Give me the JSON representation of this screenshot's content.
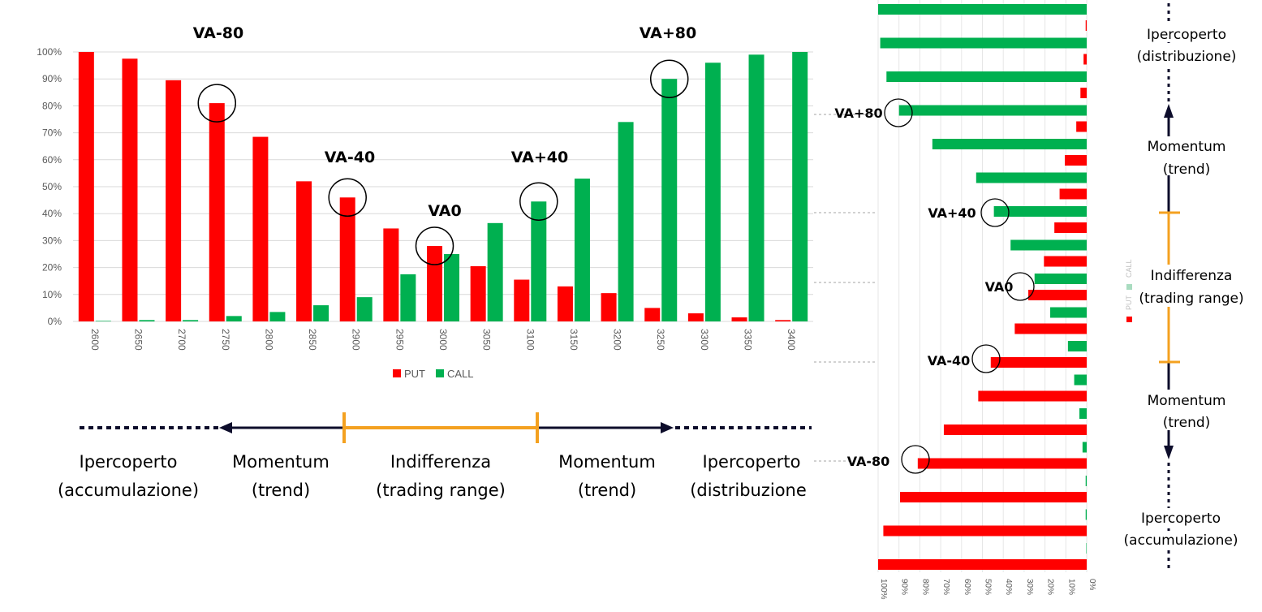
{
  "chart_data": [
    {
      "type": "bar",
      "categories": [
        "2600",
        "2650",
        "2700",
        "2750",
        "2800",
        "2850",
        "2900",
        "2950",
        "3000",
        "3050",
        "3100",
        "3150",
        "3200",
        "3250",
        "3300",
        "3350",
        "3400"
      ],
      "series": [
        {
          "name": "PUT",
          "color": "#ff0000",
          "values": [
            100,
            97.5,
            89.5,
            81,
            68.5,
            52,
            46,
            34.5,
            28,
            20.5,
            15.5,
            13,
            10.5,
            5,
            3,
            1.5,
            0.5
          ]
        },
        {
          "name": "CALL",
          "color": "#00b050",
          "values": [
            0.2,
            0.5,
            0.5,
            2,
            3.5,
            6,
            9,
            17.5,
            25,
            36.5,
            44.5,
            53,
            74,
            90,
            96,
            99,
            100
          ]
        }
      ],
      "ylim": [
        0,
        100
      ],
      "yticks": [
        "0%",
        "10%",
        "20%",
        "30%",
        "40%",
        "50%",
        "60%",
        "70%",
        "80%",
        "90%",
        "100%"
      ],
      "grid": true,
      "legend_position": "bottom",
      "annotations": [
        {
          "label": "VA-80",
          "category": "2750",
          "value": 81
        },
        {
          "label": "VA-40",
          "category": "2900",
          "value": 46
        },
        {
          "label": "VA0",
          "category": "3000",
          "value": 28
        },
        {
          "label": "VA+40",
          "category": "3100",
          "value": 44.5
        },
        {
          "label": "VA+80",
          "category": "3250",
          "value": 90
        }
      ]
    },
    {
      "type": "bar",
      "orientation": "horizontal",
      "series": [
        {
          "name": "PUT",
          "color": "#ff0000",
          "values": [
            0.5,
            1.5,
            3,
            5,
            10.5,
            13,
            15.5,
            20.5,
            28,
            34.5,
            46,
            52,
            68.5,
            81,
            89.5,
            97.5,
            100
          ]
        },
        {
          "name": "CALL",
          "color": "#00b050",
          "values": [
            100,
            99,
            96,
            90,
            74,
            53,
            44.5,
            36.5,
            25,
            17.5,
            9,
            6,
            3.5,
            2,
            0.5,
            0.5,
            0.2
          ]
        }
      ],
      "xlim": [
        0,
        100
      ],
      "xticks": [
        "100%",
        "90%",
        "80%",
        "70%",
        "60%",
        "50%",
        "40%",
        "30%",
        "20%",
        "10%",
        "0%"
      ],
      "legend_labels": [
        "PUT",
        "CALL"
      ],
      "legend_position": "right",
      "annotations": [
        {
          "label": "VA+80"
        },
        {
          "label": "VA+40"
        },
        {
          "label": "VA0"
        },
        {
          "label": "VA-40"
        },
        {
          "label": "VA-80"
        }
      ]
    }
  ],
  "horizontal_scale": {
    "zones": [
      {
        "line1": "Ipercoperto",
        "line2": "(accumulazione)"
      },
      {
        "line1": "Momentum",
        "line2": "(trend)"
      },
      {
        "line1": "Indifferenza",
        "line2": "(trading range)"
      },
      {
        "line1": "Momentum",
        "line2": "(trend)"
      },
      {
        "line1": "Ipercoperto",
        "line2": "(distribuzione"
      }
    ]
  },
  "vertical_scale": {
    "zones": [
      {
        "line1": "Ipercoperto",
        "line2": "(distribuzione)"
      },
      {
        "line1": "Momentum",
        "line2": "(trend)"
      },
      {
        "line1": "Indifferenza",
        "line2": "(trading range)"
      },
      {
        "line1": "Momentum",
        "line2": "(trend)"
      },
      {
        "line1": "Ipercoperto",
        "line2": "(accumulazione)"
      }
    ]
  },
  "colors": {
    "put": "#ff0000",
    "call": "#00b050",
    "band": "#f4a120",
    "arrow": "#0d0d2b",
    "grid": "#d9d9d9"
  }
}
